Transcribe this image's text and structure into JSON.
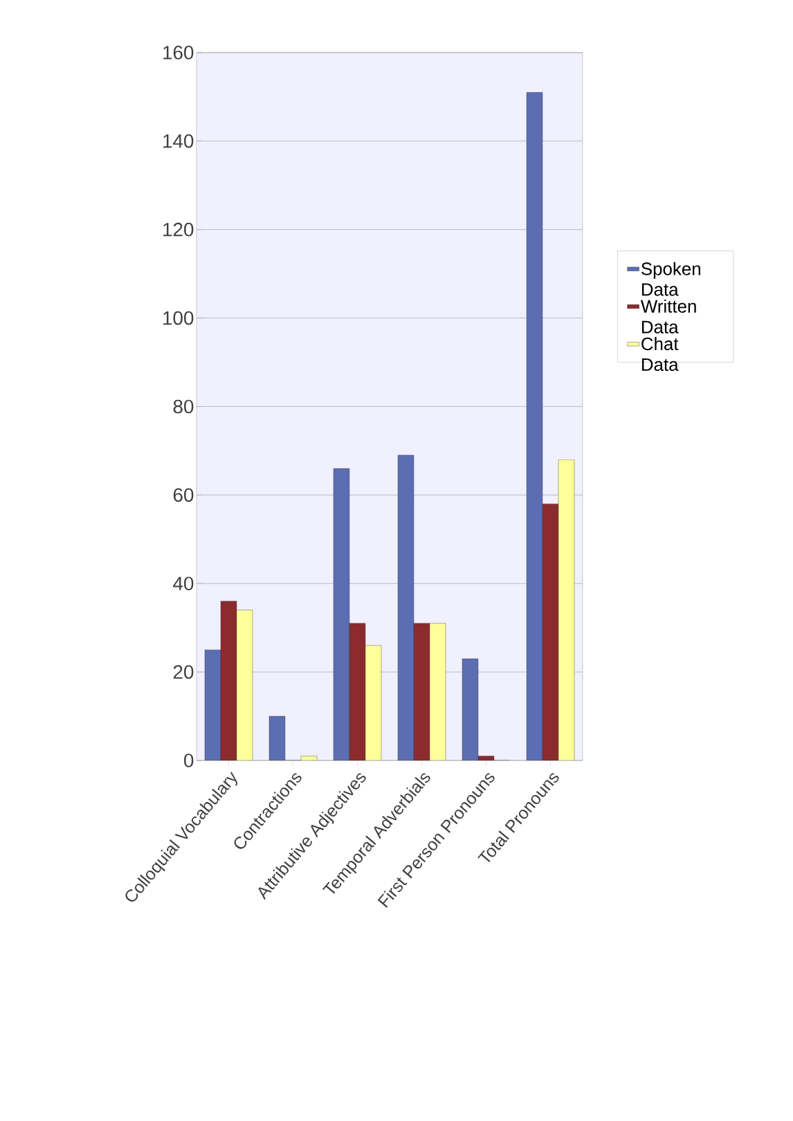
{
  "chart_data": {
    "type": "bar",
    "categories": [
      "Colloquial Vocabulary",
      "Contractions",
      "Attributive Adjectives",
      "Temporal Adverbials",
      "First Person Pronouns",
      "Total Pronouns"
    ],
    "series": [
      {
        "name": "Spoken Data",
        "color": "#5b6eb3",
        "values": [
          25,
          10,
          66,
          69,
          23,
          151
        ]
      },
      {
        "name": "Written Data",
        "color": "#8c2b2e",
        "values": [
          36,
          0,
          31,
          31,
          1,
          58
        ]
      },
      {
        "name": "Chat Data",
        "color": "#ffff99",
        "values": [
          34,
          1,
          26,
          31,
          0,
          68
        ]
      }
    ],
    "ylim": [
      0,
      160
    ],
    "yticks": [
      0,
      20,
      40,
      60,
      80,
      100,
      120,
      140,
      160
    ],
    "grid": "y",
    "legend": "right"
  }
}
